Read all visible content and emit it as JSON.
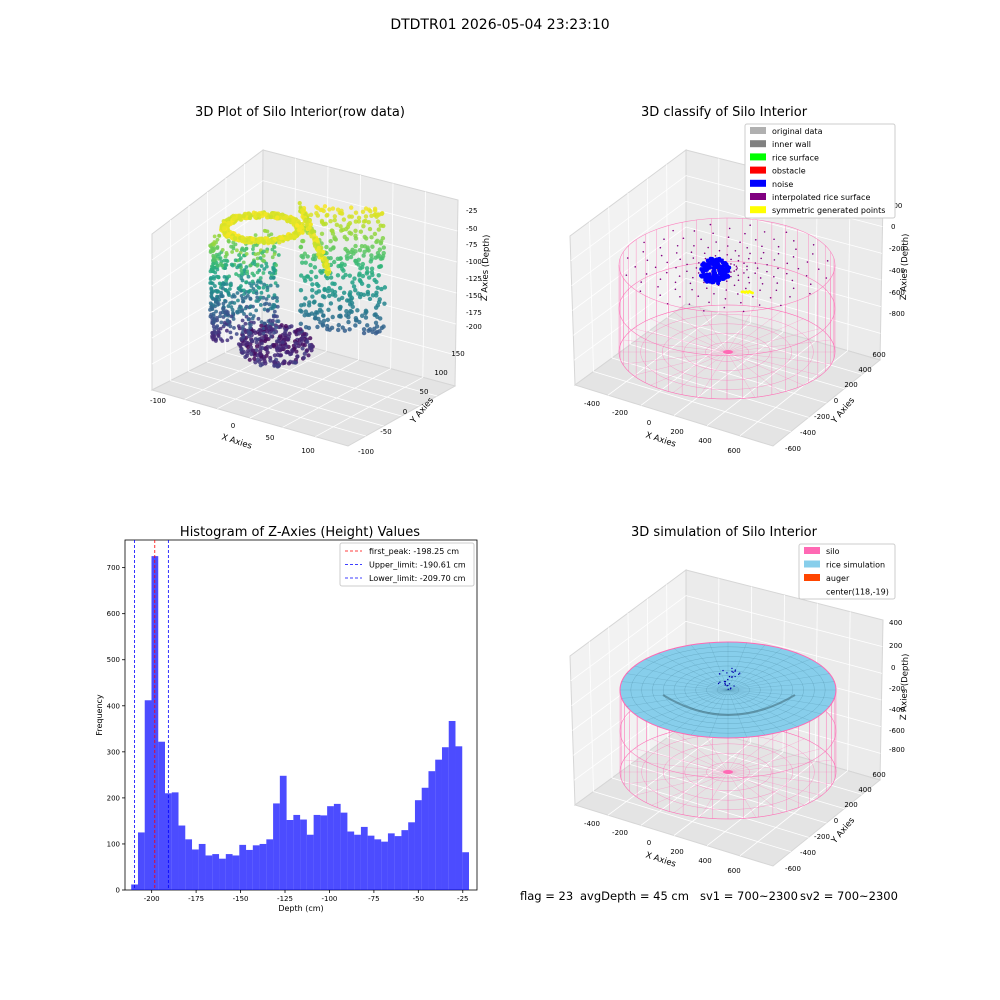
{
  "figure": {
    "suptitle": "DTDTR01 2026-05-04 23:23:10"
  },
  "panels": {
    "raw": {
      "title": "3D Plot of Silo Interior(row data)",
      "xlabel": "X Axies",
      "ylabel": "Y Axies",
      "zlabel": "Z Axies (Depth)",
      "xticks": [
        "-100",
        "-50",
        "0",
        "50",
        "100"
      ],
      "yticks": [
        "-100",
        "-50",
        "0",
        "50",
        "100",
        "150"
      ],
      "zticks": [
        "-25",
        "-50",
        "-75",
        "-100",
        "-125",
        "-150",
        "-175",
        "-200"
      ],
      "colormap": "viridis"
    },
    "classify": {
      "title": "3D classify of Silo Interior",
      "xlabel": "X Axies",
      "ylabel": "Y Axies",
      "zlabel": "Z Axies (Depth)",
      "xticks": [
        "-400",
        "-200",
        "0",
        "200",
        "400",
        "600"
      ],
      "yticks": [
        "-600",
        "-400",
        "-200",
        "0",
        "200",
        "400",
        "600"
      ],
      "zticks": [
        "200",
        "0",
        "-200",
        "-400",
        "-600",
        "-800"
      ],
      "legend": [
        {
          "label": "original data",
          "color": "#b0b0b0"
        },
        {
          "label": "inner wall",
          "color": "#808080"
        },
        {
          "label": "rice surface",
          "color": "#00ff00"
        },
        {
          "label": "obstacle",
          "color": "#ff0000"
        },
        {
          "label": "noise",
          "color": "#0000ff"
        },
        {
          "label": "interpolated rice surface",
          "color": "#800080"
        },
        {
          "label": "symmetric generated points",
          "color": "#ffff00"
        }
      ]
    },
    "histogram": {
      "title": "Histogram of Z-Axies (Height) Values",
      "xlabel": "Depth (cm)",
      "ylabel": "Frequency",
      "xticks": [
        "-200",
        "-175",
        "-150",
        "-125",
        "-100",
        "-75",
        "-50",
        "-25"
      ],
      "yticks": [
        "0",
        "100",
        "200",
        "300",
        "400",
        "500",
        "600",
        "700"
      ],
      "legend": [
        {
          "label": "first_peak: -198.25 cm",
          "color": "#ff0000"
        },
        {
          "label": "Upper_limit: -190.61 cm",
          "color": "#0000ff"
        },
        {
          "label": "Lower_limit: -209.70 cm",
          "color": "#0000ff"
        }
      ]
    },
    "simulation": {
      "title": "3D simulation of Silo Interior",
      "xlabel": "X Axies",
      "ylabel": "Y Axies",
      "zlabel": "Z Axies (Depth)",
      "xticks": [
        "-400",
        "-200",
        "0",
        "200",
        "400",
        "600"
      ],
      "yticks": [
        "-600",
        "-400",
        "-200",
        "0",
        "200",
        "400",
        "600"
      ],
      "zticks": [
        "400",
        "200",
        "0",
        "-200",
        "-400",
        "-600",
        "-800"
      ],
      "legend": [
        {
          "label": "silo",
          "color": "#ff69b4"
        },
        {
          "label": "rice simulation",
          "color": "#87ceeb"
        },
        {
          "label": "auger",
          "color": "#ff4500"
        },
        {
          "label": "center(118,-19)",
          "color": ""
        }
      ]
    }
  },
  "status": {
    "flag": "flag = 23",
    "avg_depth": "avgDepth = 45 cm",
    "sv1": "sv1 = 700~2300",
    "sv2": "sv2 = 700~2300"
  },
  "chart_data": [
    {
      "type": "scatter",
      "title": "3D Plot of Silo Interior(row data)",
      "xlabel": "X Axies",
      "ylabel": "Y Axies",
      "zlabel": "Z Axies (Depth)",
      "xlim": [
        -110,
        125
      ],
      "ylim": [
        -110,
        160
      ],
      "zlim": [
        -215,
        -15
      ],
      "note_colormap": "viridis"
    },
    {
      "type": "scatter",
      "title": "3D classify of Silo Interior",
      "xlabel": "X Axies",
      "ylabel": "Y Axies",
      "zlabel": "Z Axies (Depth)",
      "xlim": [
        -500,
        700
      ],
      "ylim": [
        -650,
        650
      ],
      "zlim": [
        -900,
        300
      ],
      "series": [
        {
          "name": "original data"
        },
        {
          "name": "inner wall"
        },
        {
          "name": "rice surface"
        },
        {
          "name": "obstacle"
        },
        {
          "name": "noise"
        },
        {
          "name": "interpolated rice surface"
        },
        {
          "name": "symmetric generated points"
        }
      ],
      "legend": "top-right"
    },
    {
      "type": "bar",
      "title": "Histogram of Z-Axies (Height) Values",
      "xlabel": "Depth (cm)",
      "ylabel": "Frequency",
      "xlim": [
        -215,
        -17
      ],
      "ylim": [
        0,
        760
      ],
      "bin_start": -211.5,
      "bin_width": 3.8,
      "values": [
        12,
        125,
        412,
        725,
        322,
        210,
        212,
        140,
        110,
        88,
        100,
        75,
        78,
        68,
        78,
        75,
        98,
        87,
        97,
        100,
        110,
        188,
        248,
        152,
        163,
        153,
        120,
        163,
        162,
        182,
        187,
        168,
        127,
        120,
        137,
        118,
        110,
        105,
        123,
        117,
        130,
        147,
        195,
        222,
        258,
        283,
        310,
        367,
        312,
        82
      ],
      "vlines": [
        {
          "name": "first_peak: -198.25 cm",
          "x": -198.25,
          "color": "#ff0000"
        },
        {
          "name": "Upper_limit: -190.61 cm",
          "x": -190.61,
          "color": "#0000ff"
        },
        {
          "name": "Lower_limit: -209.70 cm",
          "x": -209.7,
          "color": "#0000ff"
        }
      ],
      "legend": "top-right"
    },
    {
      "type": "scatter",
      "title": "3D simulation of Silo Interior",
      "xlabel": "X Axies",
      "ylabel": "Y Axies",
      "zlabel": "Z Axies (Depth)",
      "xlim": [
        -500,
        700
      ],
      "ylim": [
        -650,
        650
      ],
      "zlim": [
        -900,
        450
      ],
      "series": [
        {
          "name": "silo"
        },
        {
          "name": "rice simulation"
        },
        {
          "name": "auger"
        },
        {
          "name": "center(118,-19)"
        }
      ],
      "legend": "top-right"
    }
  ]
}
